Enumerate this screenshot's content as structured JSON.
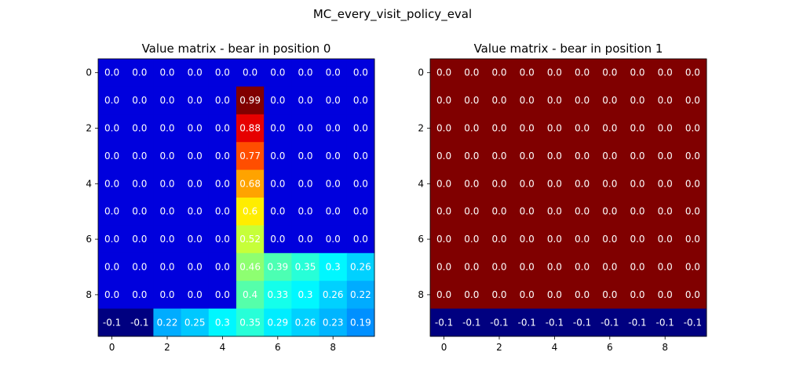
{
  "suptitle": "MC_every_visit_policy_eval",
  "chart_data": [
    {
      "type": "heatmap",
      "title": "Value matrix - bear in position 0",
      "colormap": "jet",
      "cell_label_color": "#ffffff",
      "rows": 10,
      "cols": 10,
      "vmin": -0.1,
      "vmax": 0.99,
      "xticks": [
        0,
        2,
        4,
        6,
        8
      ],
      "yticks": [
        0,
        2,
        4,
        6,
        8
      ],
      "values": [
        [
          0.0,
          0.0,
          0.0,
          0.0,
          0.0,
          0.0,
          0.0,
          0.0,
          0.0,
          0.0
        ],
        [
          0.0,
          0.0,
          0.0,
          0.0,
          0.0,
          0.99,
          0.0,
          0.0,
          0.0,
          0.0
        ],
        [
          0.0,
          0.0,
          0.0,
          0.0,
          0.0,
          0.88,
          0.0,
          0.0,
          0.0,
          0.0
        ],
        [
          0.0,
          0.0,
          0.0,
          0.0,
          0.0,
          0.77,
          0.0,
          0.0,
          0.0,
          0.0
        ],
        [
          0.0,
          0.0,
          0.0,
          0.0,
          0.0,
          0.68,
          0.0,
          0.0,
          0.0,
          0.0
        ],
        [
          0.0,
          0.0,
          0.0,
          0.0,
          0.0,
          0.6,
          0.0,
          0.0,
          0.0,
          0.0
        ],
        [
          0.0,
          0.0,
          0.0,
          0.0,
          0.0,
          0.52,
          0.0,
          0.0,
          0.0,
          0.0
        ],
        [
          0.0,
          0.0,
          0.0,
          0.0,
          0.0,
          0.46,
          0.39,
          0.35,
          0.3,
          0.26
        ],
        [
          0.0,
          0.0,
          0.0,
          0.0,
          0.0,
          0.4,
          0.33,
          0.3,
          0.26,
          0.22
        ],
        [
          -0.1,
          -0.1,
          0.22,
          0.25,
          0.3,
          0.35,
          0.29,
          0.26,
          0.23,
          0.19
        ]
      ]
    },
    {
      "type": "heatmap",
      "title": "Value matrix - bear in position 1",
      "colormap": "jet",
      "cell_label_color": "#ffffff",
      "rows": 10,
      "cols": 10,
      "vmin": -0.1,
      "vmax": 0.0,
      "xticks": [
        0,
        2,
        4,
        6,
        8
      ],
      "yticks": [
        0,
        2,
        4,
        6,
        8
      ],
      "values": [
        [
          0.0,
          0.0,
          0.0,
          0.0,
          0.0,
          0.0,
          0.0,
          0.0,
          0.0,
          0.0
        ],
        [
          0.0,
          0.0,
          0.0,
          0.0,
          0.0,
          0.0,
          0.0,
          0.0,
          0.0,
          0.0
        ],
        [
          0.0,
          0.0,
          0.0,
          0.0,
          0.0,
          0.0,
          0.0,
          0.0,
          0.0,
          0.0
        ],
        [
          0.0,
          0.0,
          0.0,
          0.0,
          0.0,
          0.0,
          0.0,
          0.0,
          0.0,
          0.0
        ],
        [
          0.0,
          0.0,
          0.0,
          0.0,
          0.0,
          0.0,
          0.0,
          0.0,
          0.0,
          0.0
        ],
        [
          0.0,
          0.0,
          0.0,
          0.0,
          0.0,
          0.0,
          0.0,
          0.0,
          0.0,
          0.0
        ],
        [
          0.0,
          0.0,
          0.0,
          0.0,
          0.0,
          0.0,
          0.0,
          0.0,
          0.0,
          0.0
        ],
        [
          0.0,
          0.0,
          0.0,
          0.0,
          0.0,
          0.0,
          0.0,
          0.0,
          0.0,
          0.0
        ],
        [
          0.0,
          0.0,
          0.0,
          0.0,
          0.0,
          0.0,
          0.0,
          0.0,
          0.0,
          0.0
        ],
        [
          -0.1,
          -0.1,
          -0.1,
          -0.1,
          -0.1,
          -0.1,
          -0.1,
          -0.1,
          -0.1,
          -0.1
        ]
      ]
    }
  ]
}
